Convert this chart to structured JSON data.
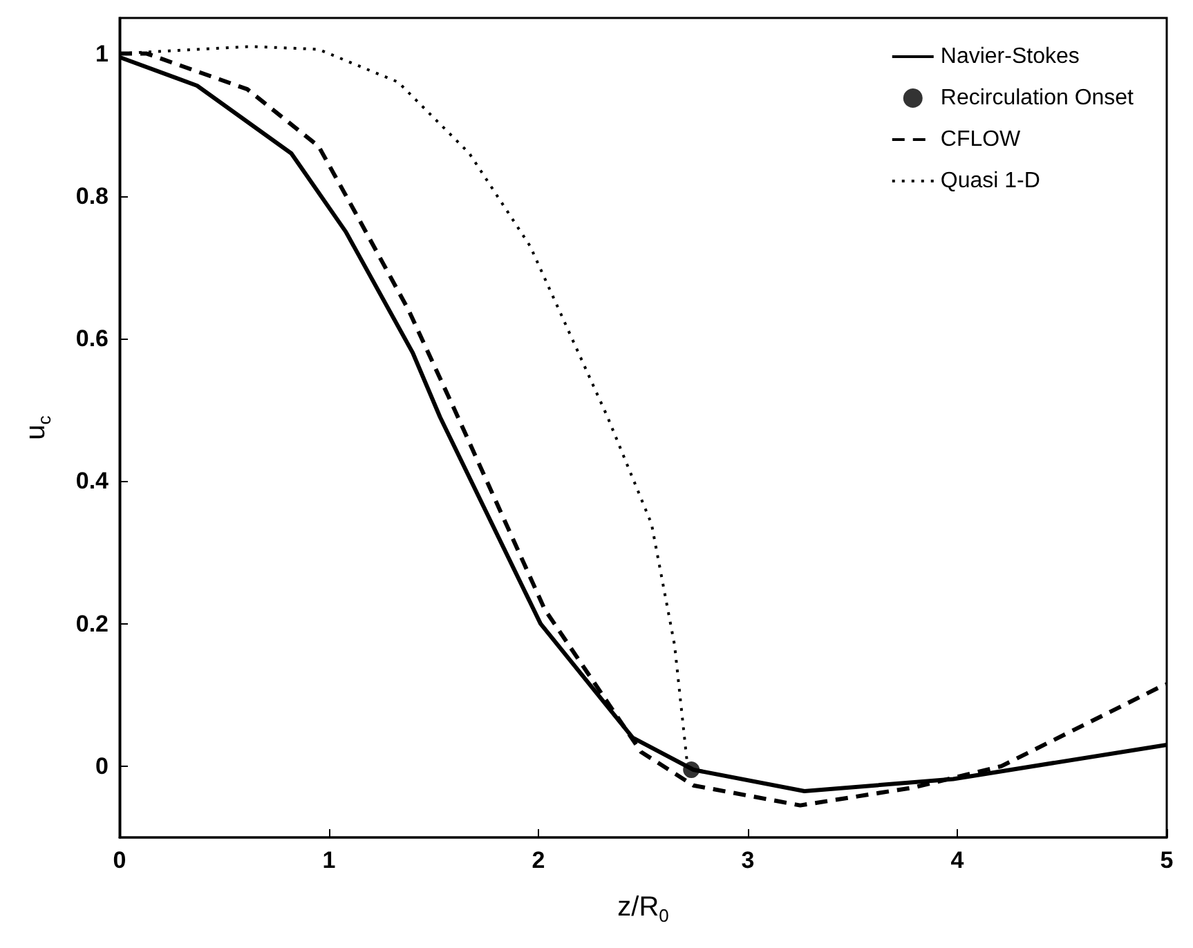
{
  "chart_data": {
    "type": "line",
    "xlabel": "z/R$_{0}$",
    "ylabel": "u$_{c}$",
    "xlim": [
      0,
      5
    ],
    "ylim": [
      -0.1,
      1.05
    ],
    "xticks": [
      0,
      1,
      2,
      3,
      4,
      5
    ],
    "yticks": [
      0,
      0.2,
      0.4,
      0.6,
      0.8,
      1
    ],
    "grid": false,
    "legend": "top right",
    "series": [
      {
        "name": "Navier-Stokes",
        "color": "#000000",
        "line_style": "solid",
        "marker": "none",
        "x": [
          0,
          0.37,
          0.82,
          1.08,
          1.4,
          1.53,
          2.01,
          2.45,
          2.74,
          3.27,
          3.98,
          5
        ],
        "values": [
          0.995,
          0.955,
          0.86,
          0.75,
          0.58,
          0.49,
          0.2,
          0.04,
          -0.005,
          -0.035,
          -0.018,
          0.03
        ]
      },
      {
        "name": "Recirculation Onset",
        "type": "scatter",
        "color": "#000000",
        "marker": "circle",
        "x": [
          2.73
        ],
        "values": [
          -0.005
        ]
      },
      {
        "name": "CFLOW",
        "color": "#000000",
        "line_style": "dashed",
        "marker": "none",
        "x": [
          0,
          0.13,
          0.61,
          0.95,
          1.12,
          1.38,
          1.6,
          2.03,
          2.49,
          2.74,
          3.25,
          3.79,
          4.21,
          4.96,
          5
        ],
        "values": [
          1.0,
          1.0,
          0.95,
          0.87,
          0.78,
          0.64,
          0.5,
          0.22,
          0.02,
          -0.027,
          -0.055,
          -0.03,
          0.0,
          0.11,
          0.115
        ]
      },
      {
        "name": "Quasi 1-D",
        "color": "#000000",
        "line_style": "dotted",
        "marker": "none",
        "x": [
          0,
          0.63,
          0.95,
          1.33,
          1.67,
          1.96,
          2.33,
          2.54,
          2.65,
          2.71
        ],
        "values": [
          1.0,
          1.01,
          1.006,
          0.96,
          0.86,
          0.73,
          0.49,
          0.34,
          0.17,
          0.005
        ]
      }
    ]
  }
}
